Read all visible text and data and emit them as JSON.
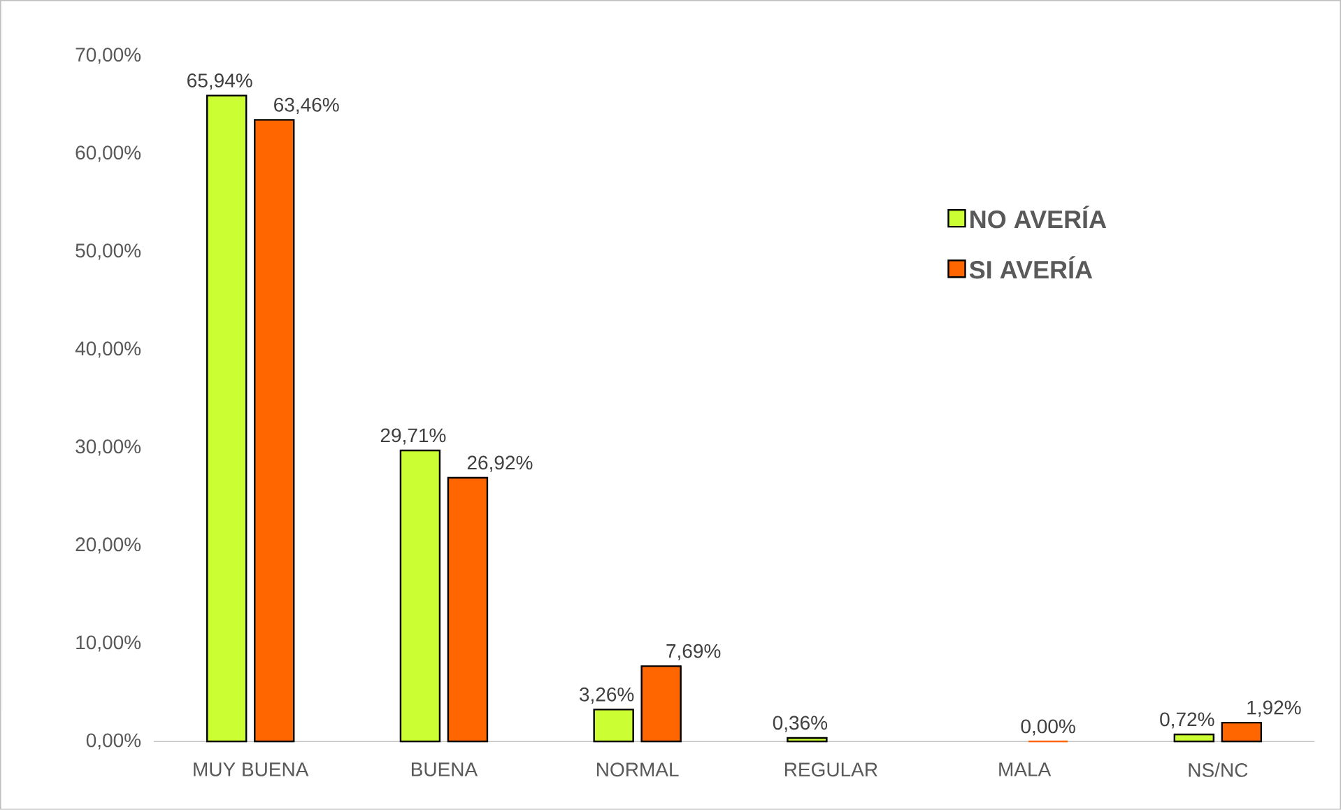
{
  "chart_data": {
    "type": "bar",
    "categories": [
      "MUY BUENA",
      "BUENA",
      "NORMAL",
      "REGULAR",
      "MALA",
      "NS/NC"
    ],
    "series": [
      {
        "name": "NO AVERÍA",
        "color": "#ccff33",
        "values": [
          65.94,
          29.71,
          3.26,
          0.36,
          null,
          0.72
        ],
        "value_labels": [
          "65,94%",
          "29,71%",
          "3,26%",
          "0,36%",
          null,
          "0,72%"
        ]
      },
      {
        "name": "SI AVERÍA",
        "color": "#ff6600",
        "values": [
          63.46,
          26.92,
          7.69,
          null,
          0.0,
          1.92
        ],
        "value_labels": [
          "63,46%",
          "26,92%",
          "7,69%",
          null,
          "0,00%",
          "1,92%"
        ]
      }
    ],
    "ylim": [
      0,
      70
    ],
    "yticks": [
      {
        "value": 0,
        "label": "0,00%"
      },
      {
        "value": 10,
        "label": "10,00%"
      },
      {
        "value": 20,
        "label": "20,00%"
      },
      {
        "value": 30,
        "label": "30,00%"
      },
      {
        "value": 40,
        "label": "40,00%"
      },
      {
        "value": 50,
        "label": "50,00%"
      },
      {
        "value": 60,
        "label": "60,00%"
      },
      {
        "value": 70,
        "label": "70,00%"
      }
    ],
    "grid": false,
    "legend": "right"
  }
}
